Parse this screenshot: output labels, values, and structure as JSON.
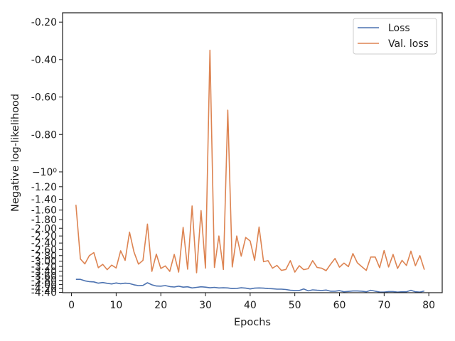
{
  "chart_data": {
    "type": "line",
    "title": "",
    "xlabel": "Epochs",
    "ylabel": "Negative log-likelihood",
    "grid": false,
    "legend": "top-right",
    "xlim": [
      -2,
      83
    ],
    "ylim": [
      -4.42,
      -0.15
    ],
    "yscale": "symlog",
    "x_ticks": [
      0,
      10,
      20,
      30,
      40,
      50,
      60,
      70,
      80
    ],
    "y_ticks": [
      {
        "value": -0.2,
        "label": "-0.20"
      },
      {
        "value": -0.4,
        "label": "-0.40"
      },
      {
        "value": -0.6,
        "label": "-0.60"
      },
      {
        "value": -0.8,
        "label": "-0.80"
      },
      {
        "value": -1.0,
        "label": "−10⁰"
      },
      {
        "value": -1.2,
        "label": "-1.20"
      },
      {
        "value": -1.4,
        "label": "-1.40"
      },
      {
        "value": -1.6,
        "label": "-1.60"
      },
      {
        "value": -1.8,
        "label": "-1.80"
      },
      {
        "value": -2.0,
        "label": "-2.00"
      },
      {
        "value": -2.2,
        "label": "-2.20"
      },
      {
        "value": -2.4,
        "label": "-2.40"
      },
      {
        "value": -2.6,
        "label": "-2.60"
      },
      {
        "value": -2.8,
        "label": "-2.80"
      },
      {
        "value": -3.0,
        "label": "-3.00"
      },
      {
        "value": -3.2,
        "label": "-3.20"
      },
      {
        "value": -3.4,
        "label": "-3.40"
      },
      {
        "value": -3.6,
        "label": "-3.60"
      },
      {
        "value": -3.8,
        "label": "-3.80"
      },
      {
        "value": -4.0,
        "label": "-4.00"
      },
      {
        "value": -4.2,
        "label": "-4.20"
      },
      {
        "value": -4.4,
        "label": "-4.40"
      }
    ],
    "series": [
      {
        "name": "Loss",
        "color": "#4c72b0",
        "values": [
          -3.75,
          -3.75,
          -3.82,
          -3.86,
          -3.87,
          -3.93,
          -3.9,
          -3.94,
          -3.97,
          -3.92,
          -3.96,
          -3.93,
          -3.95,
          -4.01,
          -4.05,
          -4.04,
          -3.91,
          -4.01,
          -4.07,
          -4.08,
          -4.05,
          -4.1,
          -4.12,
          -4.08,
          -4.13,
          -4.11,
          -4.17,
          -4.14,
          -4.11,
          -4.13,
          -4.16,
          -4.14,
          -4.17,
          -4.16,
          -4.17,
          -4.2,
          -4.19,
          -4.16,
          -4.18,
          -4.22,
          -4.18,
          -4.17,
          -4.18,
          -4.2,
          -4.21,
          -4.23,
          -4.23,
          -4.25,
          -4.29,
          -4.3,
          -4.3,
          -4.22,
          -4.32,
          -4.27,
          -4.29,
          -4.3,
          -4.28,
          -4.34,
          -4.34,
          -4.31,
          -4.37,
          -4.35,
          -4.33,
          -4.33,
          -4.34,
          -4.37,
          -4.29,
          -4.34,
          -4.38,
          -4.39,
          -4.36,
          -4.36,
          -4.39,
          -4.37,
          -4.37,
          -4.29,
          -4.37,
          -4.39,
          -4.33
        ]
      },
      {
        "name": "Val. loss",
        "color": "#dd8452",
        "values": [
          -1.5,
          -2.92,
          -3.1,
          -2.8,
          -2.7,
          -3.25,
          -3.12,
          -3.33,
          -3.15,
          -3.26,
          -2.64,
          -2.97,
          -2.1,
          -2.68,
          -3.11,
          -2.97,
          -1.9,
          -3.4,
          -2.75,
          -3.28,
          -3.18,
          -3.4,
          -2.76,
          -3.43,
          -1.98,
          -3.31,
          -1.52,
          -3.46,
          -1.61,
          -3.27,
          -0.35,
          -3.24,
          -2.2,
          -3.32,
          -0.67,
          -3.22,
          -2.2,
          -2.82,
          -2.24,
          -2.34,
          -2.97,
          -1.97,
          -3.02,
          -2.98,
          -3.27,
          -3.16,
          -3.36,
          -3.32,
          -2.98,
          -3.43,
          -3.17,
          -3.33,
          -3.29,
          -2.98,
          -3.24,
          -3.27,
          -3.37,
          -3.12,
          -2.9,
          -3.23,
          -3.07,
          -3.21,
          -2.73,
          -3.06,
          -3.21,
          -3.36,
          -2.85,
          -2.85,
          -3.25,
          -2.63,
          -3.22,
          -2.76,
          -3.28,
          -2.97,
          -3.16,
          -2.65,
          -3.17,
          -2.8,
          -3.33
        ]
      }
    ]
  }
}
